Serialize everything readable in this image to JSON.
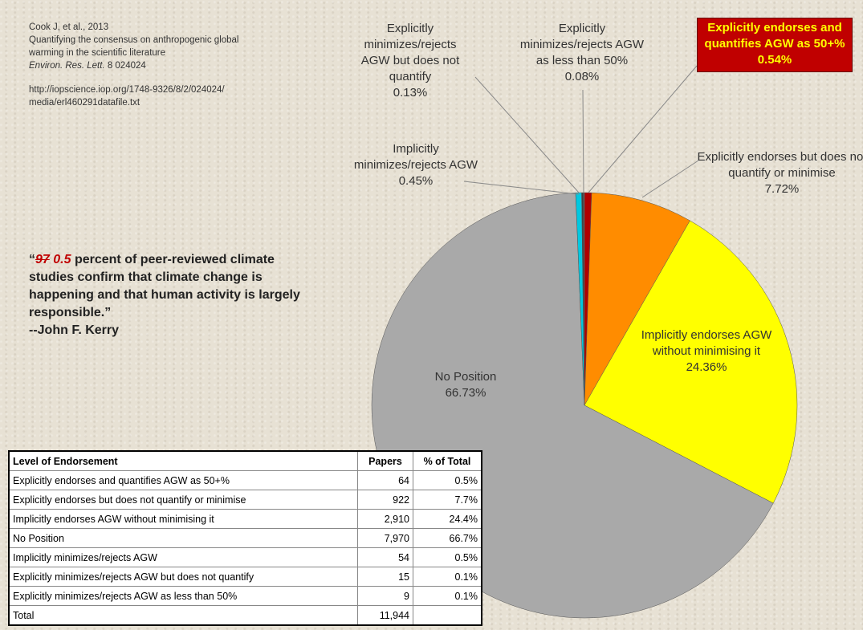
{
  "chart_data": {
    "type": "pie",
    "categories": [
      "Explicitly endorses and quantifies AGW as 50+%",
      "Explicitly endorses but does not quantify or minimise",
      "Implicitly endorses AGW without minimising it",
      "No Position",
      "Implicitly minimizes/rejects AGW",
      "Explicitly minimizes/rejects AGW but does not quantify",
      "Explicitly minimizes/rejects AGW as less than 50%"
    ],
    "values": [
      0.54,
      7.72,
      24.36,
      66.73,
      0.45,
      0.13,
      0.08
    ],
    "value_labels": [
      "0.54%",
      "7.72%",
      "24.36%",
      "66.73%",
      "0.45%",
      "0.13%",
      "0.08%"
    ],
    "colors": [
      "#b00000",
      "#ff8c00",
      "#ffff00",
      "#a9a9a9",
      "#00c8e0",
      "#404040",
      "#606060"
    ]
  },
  "citation": {
    "author": "Cook J, et al., 2013",
    "title": "Quantifying the consensus on anthropogenic global warming in the scientific literature",
    "journal": "Environ. Res. Lett.",
    "volume": "8 024024",
    "url": "http://iopscience.iop.org/1748-9326/8/2/024024/media/erl460291datafile.txt"
  },
  "quote": {
    "open": "“",
    "struck": "97",
    "replacement": "0.5",
    "text": "percent of peer-reviewed climate studies confirm that climate change is happening and that human activity is largely responsible.”",
    "attribution": "--John F. Kerry"
  },
  "table": {
    "header": [
      "Level of Endorsement",
      "Papers",
      "% of Total"
    ],
    "rows": [
      [
        "Explicitly endorses and quantifies AGW as 50+%",
        "64",
        "0.5%"
      ],
      [
        "Explicitly endorses but does not quantify or minimise",
        "922",
        "7.7%"
      ],
      [
        "Implicitly endorses AGW without minimising it",
        "2,910",
        "24.4%"
      ],
      [
        "No Position",
        "7,970",
        "66.7%"
      ],
      [
        "Implicitly minimizes/rejects AGW",
        "54",
        "0.5%"
      ],
      [
        "Explicitly minimizes/rejects AGW but does not quantify",
        "15",
        "0.1%"
      ],
      [
        "Explicitly minimizes/rejects AGW as less than 50%",
        "9",
        "0.1%"
      ],
      [
        "Total",
        "11,944",
        ""
      ]
    ]
  }
}
